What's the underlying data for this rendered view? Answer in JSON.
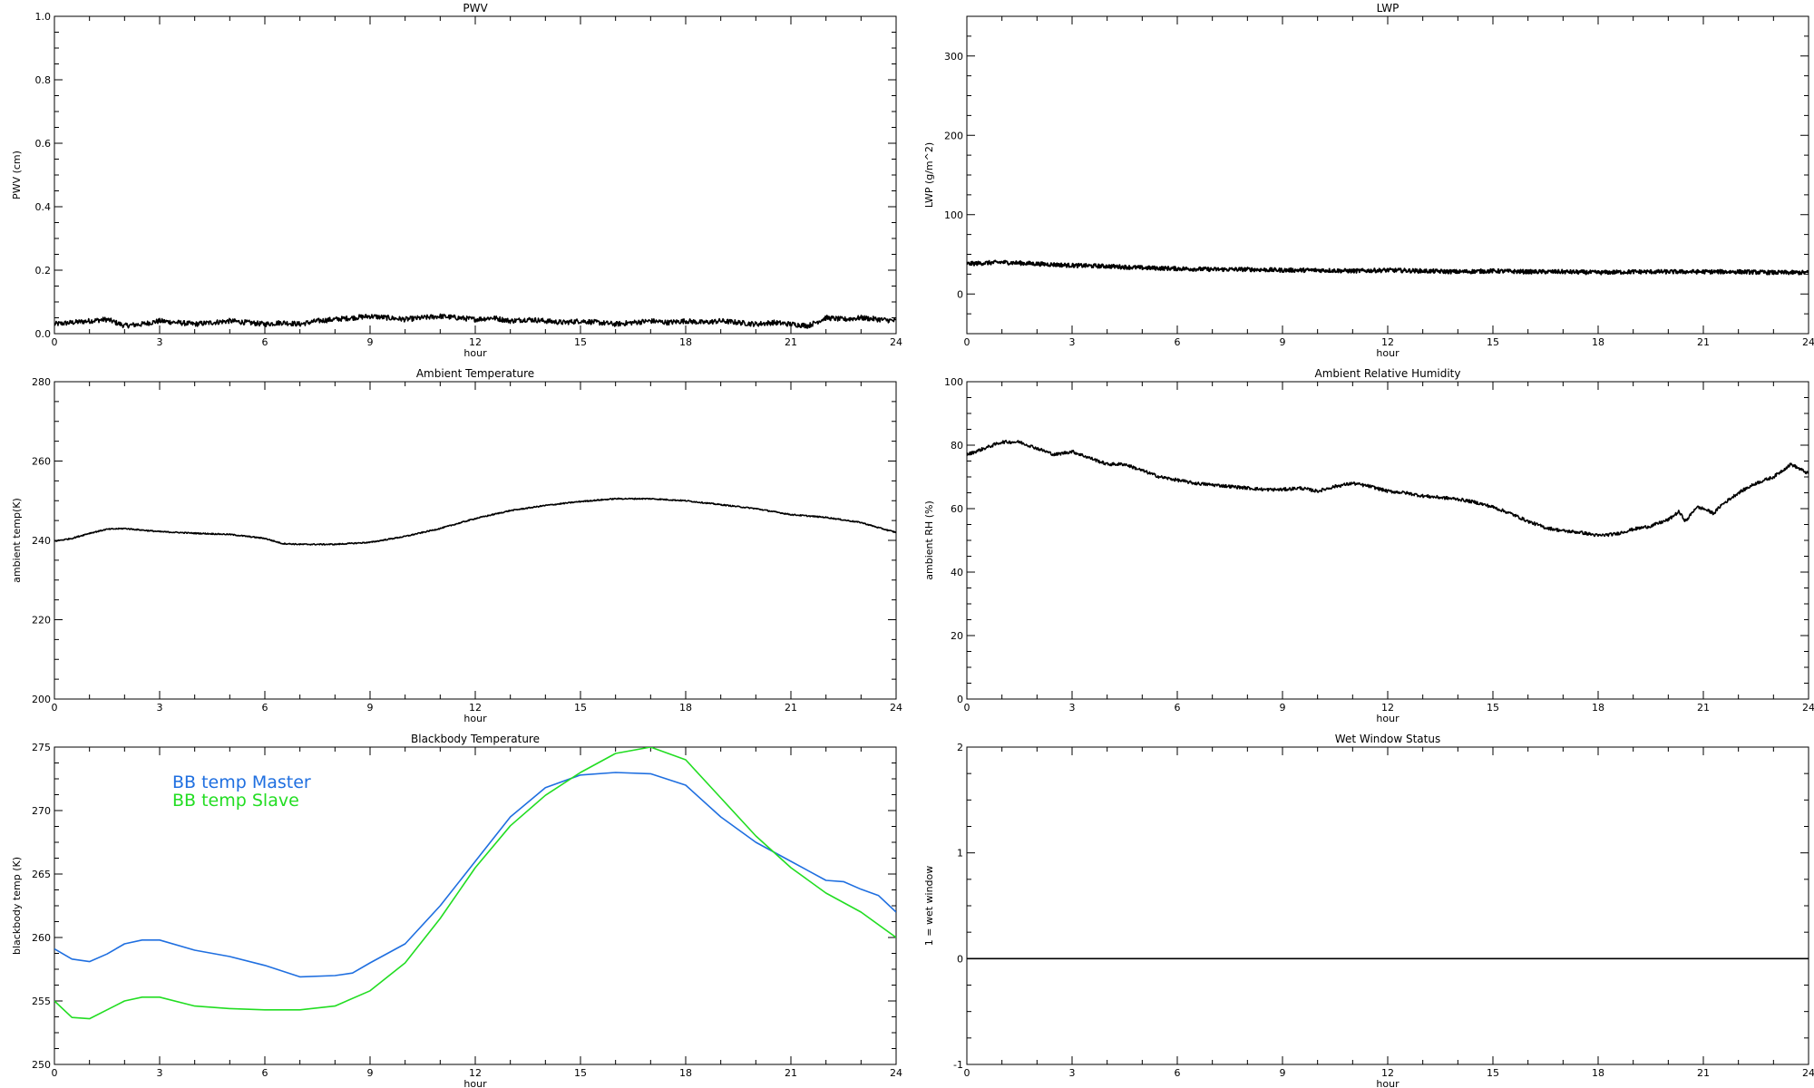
{
  "chart_data": [
    {
      "type": "line",
      "title": "PWV",
      "xlabel": "hour",
      "ylabel": "PWV (cm)",
      "xlim": [
        0,
        24
      ],
      "ylim": [
        0,
        1.0
      ],
      "xticks": [
        0,
        3,
        6,
        9,
        12,
        15,
        18,
        21,
        24
      ],
      "yticks": [
        0.0,
        0.2,
        0.4,
        0.6,
        0.8,
        1.0
      ],
      "yticklabels": [
        "0.0",
        "0.2",
        "0.4",
        "0.6",
        "0.8",
        "1.0"
      ],
      "series": [
        {
          "color": "#000000",
          "noise": 0.008,
          "x": [
            0,
            0.5,
            1,
            1.5,
            2,
            2.5,
            3,
            3.5,
            4,
            4.5,
            5,
            5.5,
            6,
            6.5,
            7,
            7.5,
            8,
            8.5,
            9,
            9.5,
            10,
            10.5,
            11,
            11.5,
            12,
            12.5,
            13,
            13.5,
            14,
            14.5,
            15,
            15.5,
            16,
            16.5,
            17,
            17.5,
            18,
            18.5,
            19,
            19.5,
            20,
            20.5,
            21,
            21.5,
            22,
            22.5,
            23,
            23.5,
            24
          ],
          "y": [
            0.03,
            0.035,
            0.04,
            0.045,
            0.025,
            0.03,
            0.04,
            0.035,
            0.03,
            0.035,
            0.04,
            0.035,
            0.03,
            0.035,
            0.03,
            0.04,
            0.045,
            0.05,
            0.055,
            0.05,
            0.045,
            0.05,
            0.055,
            0.05,
            0.045,
            0.05,
            0.04,
            0.045,
            0.04,
            0.035,
            0.04,
            0.035,
            0.03,
            0.035,
            0.04,
            0.035,
            0.04,
            0.035,
            0.04,
            0.035,
            0.03,
            0.035,
            0.03,
            0.025,
            0.05,
            0.045,
            0.05,
            0.045,
            0.04
          ]
        }
      ]
    },
    {
      "type": "line",
      "title": "LWP",
      "xlabel": "hour",
      "ylabel": "LWP (g/m^2)",
      "xlim": [
        0,
        24
      ],
      "ylim": [
        -50,
        350
      ],
      "xticks": [
        0,
        3,
        6,
        9,
        12,
        15,
        18,
        21,
        24
      ],
      "yticks": [
        0,
        100,
        200,
        300
      ],
      "yticklabels": [
        "0",
        "100",
        "200",
        "300"
      ],
      "series": [
        {
          "color": "#000000",
          "noise": 2.5,
          "x": [
            0,
            1,
            2,
            3,
            4,
            5,
            6,
            7,
            8,
            9,
            10,
            11,
            12,
            13,
            14,
            15,
            16,
            17,
            18,
            19,
            20,
            21,
            22,
            23,
            24
          ],
          "y": [
            38,
            40,
            38,
            36,
            35,
            33,
            32,
            31,
            31,
            30,
            30,
            29,
            30,
            29,
            28,
            29,
            28,
            28,
            27,
            28,
            28,
            28,
            28,
            27,
            27
          ]
        }
      ]
    },
    {
      "type": "line",
      "title": "Ambient Temperature",
      "xlabel": "hour",
      "ylabel": "ambient temp(K)",
      "xlim": [
        0,
        24
      ],
      "ylim": [
        200,
        280
      ],
      "xticks": [
        0,
        3,
        6,
        9,
        12,
        15,
        18,
        21,
        24
      ],
      "yticks": [
        200,
        220,
        240,
        260,
        280
      ],
      "yticklabels": [
        "200",
        "220",
        "240",
        "260",
        "280"
      ],
      "series": [
        {
          "color": "#000000",
          "noise": 0.15,
          "x": [
            0,
            0.5,
            1,
            1.5,
            2,
            3,
            4,
            5,
            6,
            6.5,
            7,
            8,
            9,
            10,
            11,
            12,
            13,
            14,
            15,
            16,
            17,
            18,
            19,
            20,
            21,
            22,
            23,
            23.5,
            24
          ],
          "y": [
            239.8,
            240.5,
            241.8,
            242.8,
            243,
            242.2,
            241.8,
            241.5,
            240.5,
            239.2,
            239,
            239,
            239.5,
            241,
            243,
            245.5,
            247.5,
            248.8,
            249.8,
            250.5,
            250.5,
            250,
            249,
            248,
            246.5,
            245.8,
            244.5,
            243.2,
            242
          ]
        }
      ]
    },
    {
      "type": "line",
      "title": "Ambient Relative Humidity",
      "xlabel": "hour",
      "ylabel": "ambient RH (%)",
      "xlim": [
        0,
        24
      ],
      "ylim": [
        0,
        100
      ],
      "xticks": [
        0,
        3,
        6,
        9,
        12,
        15,
        18,
        21,
        24
      ],
      "yticks": [
        0,
        20,
        40,
        60,
        80,
        100
      ],
      "yticklabels": [
        "0",
        "20",
        "40",
        "60",
        "80",
        "100"
      ],
      "series": [
        {
          "color": "#000000",
          "noise": 0.5,
          "x": [
            0,
            0.5,
            1,
            1.5,
            2,
            2.5,
            3,
            3.5,
            4,
            4.5,
            5,
            5.5,
            6,
            6.5,
            7,
            7.5,
            8,
            8.5,
            9,
            9.5,
            10,
            10.5,
            11,
            11.5,
            12,
            12.5,
            13,
            13.5,
            14,
            14.5,
            15,
            15.5,
            16,
            16.5,
            17,
            17.5,
            18,
            18.5,
            19,
            19.5,
            20,
            20.3,
            20.5,
            20.8,
            21,
            21.3,
            21.5,
            22,
            22.5,
            23,
            23.5,
            24
          ],
          "y": [
            77,
            79,
            81,
            81,
            79,
            77,
            78,
            76,
            74,
            74,
            72,
            70,
            69,
            68,
            67.5,
            67,
            66.5,
            66,
            66,
            66.5,
            65.5,
            67,
            68,
            67,
            65.5,
            65,
            64,
            63.5,
            63,
            62,
            60.5,
            58.5,
            56,
            54,
            53,
            52.5,
            51.5,
            52,
            53.5,
            54.5,
            56.5,
            59,
            56,
            60.5,
            60,
            58.5,
            61,
            65,
            68,
            70,
            74,
            71
          ]
        }
      ]
    },
    {
      "type": "line",
      "title": "Blackbody Temperature",
      "xlabel": "hour",
      "ylabel": "blackbody temp (K)",
      "xlim": [
        0,
        24
      ],
      "ylim": [
        250,
        275
      ],
      "xticks": [
        0,
        3,
        6,
        9,
        12,
        15,
        18,
        21,
        24
      ],
      "yticks": [
        250,
        255,
        260,
        265,
        270,
        275
      ],
      "yticklabels": [
        "250",
        "255",
        "260",
        "265",
        "270",
        "275"
      ],
      "legend": [
        "BB temp Master",
        "BB temp Slave"
      ],
      "series": [
        {
          "name": "BB temp Master",
          "color": "#1f6fe0",
          "noise": 0,
          "x": [
            0,
            0.5,
            1,
            1.5,
            2,
            2.5,
            3,
            4,
            5,
            6,
            7,
            8,
            8.5,
            9,
            10,
            11,
            12,
            13,
            14,
            15,
            16,
            17,
            18,
            19,
            20,
            21,
            22,
            22.5,
            23,
            23.5,
            24
          ],
          "y": [
            259.1,
            258.3,
            258.1,
            258.7,
            259.5,
            259.8,
            259.8,
            259,
            258.5,
            257.8,
            256.9,
            257,
            257.2,
            258,
            259.5,
            262.5,
            266,
            269.5,
            271.8,
            272.8,
            273,
            272.9,
            272,
            269.5,
            267.5,
            266,
            264.5,
            264.4,
            263.8,
            263.3,
            262
          ]
        },
        {
          "name": "BB temp Slave",
          "color": "#22dd22",
          "noise": 0,
          "x": [
            0,
            0.5,
            1,
            1.5,
            2,
            2.5,
            3,
            4,
            5,
            6,
            7,
            8,
            9,
            10,
            11,
            12,
            13,
            14,
            15,
            16,
            17,
            18,
            19,
            20,
            21,
            22,
            23,
            24
          ],
          "y": [
            255,
            253.7,
            253.6,
            254.3,
            255,
            255.3,
            255.3,
            254.6,
            254.4,
            254.3,
            254.3,
            254.6,
            255.8,
            258,
            261.5,
            265.5,
            268.8,
            271.2,
            273,
            274.5,
            275,
            274,
            271,
            268,
            265.5,
            263.5,
            262,
            260
          ]
        }
      ]
    },
    {
      "type": "line",
      "title": "Wet Window Status",
      "xlabel": "hour",
      "ylabel": "1 = wet window",
      "xlim": [
        0,
        24
      ],
      "ylim": [
        -1,
        2
      ],
      "xticks": [
        0,
        3,
        6,
        9,
        12,
        15,
        18,
        21,
        24
      ],
      "yticks": [
        -1,
        0,
        1,
        2
      ],
      "yticklabels": [
        "-1",
        "0",
        "1",
        "2"
      ],
      "series": [
        {
          "color": "#000000",
          "noise": 0,
          "x": [
            0,
            24
          ],
          "y": [
            0,
            0
          ]
        }
      ]
    }
  ]
}
